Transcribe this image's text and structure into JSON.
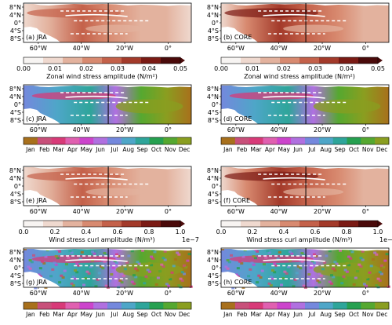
{
  "figure": {
    "lat_ticks": [
      "8°N",
      "4°N",
      "0°",
      "4°S",
      "8°S"
    ],
    "lon_ticks": [
      "60°W",
      "40°W",
      "20°W",
      "0°"
    ],
    "panels": [
      {
        "id": "a",
        "label": "(a) JRA",
        "field": "amp",
        "product": "JRA"
      },
      {
        "id": "b",
        "label": "(b) CORE",
        "field": "amp",
        "product": "CORE"
      },
      {
        "id": "c",
        "label": "(c) JRA",
        "field": "month",
        "product": "JRA"
      },
      {
        "id": "d",
        "label": "(d) CORE",
        "field": "month",
        "product": "CORE"
      },
      {
        "id": "e",
        "label": "(e) JRA",
        "field": "amp",
        "product": "JRA"
      },
      {
        "id": "f",
        "label": "(f) CORE",
        "field": "amp",
        "product": "CORE"
      },
      {
        "id": "g",
        "label": "(g) JRA",
        "field": "month_noisy",
        "product": "JRA"
      },
      {
        "id": "h",
        "label": "(h) CORE",
        "field": "month_noisy",
        "product": "CORE"
      }
    ],
    "colorbars": {
      "tau": {
        "ticks": [
          "0.00",
          "0.01",
          "0.02",
          "0.03",
          "0.04",
          "0.05"
        ],
        "label": "Zonal wind stress amplitude (N/m²)"
      },
      "curl": {
        "ticks": [
          "0.0",
          "0.2",
          "0.4",
          "0.6",
          "0.8",
          "1.0"
        ],
        "label": "Wind stress curl amplitude (N/m³)",
        "exponent": "1e−7"
      },
      "months": [
        "Jan",
        "Feb",
        "Mar",
        "Apr",
        "May",
        "Jun",
        "Jul",
        "Aug",
        "Sep",
        "Oct",
        "Nov",
        "Dec"
      ]
    },
    "colors": {
      "amp_scale": [
        "#f7f4f2",
        "#efd9cf",
        "#e3b29e",
        "#d88a70",
        "#c4614a",
        "#a33a2a",
        "#7a1a14",
        "#4a0a0a"
      ],
      "month_scale": [
        "#a8701c",
        "#c8507a",
        "#d83a78",
        "#e060b0",
        "#cc44cc",
        "#b070e0",
        "#7488dd",
        "#4ea6c8",
        "#2ea59a",
        "#26a050",
        "#55a830",
        "#8a9e20"
      ],
      "land": "#ffffff",
      "contour": "#ffffff",
      "reference_line": "#000000"
    }
  }
}
